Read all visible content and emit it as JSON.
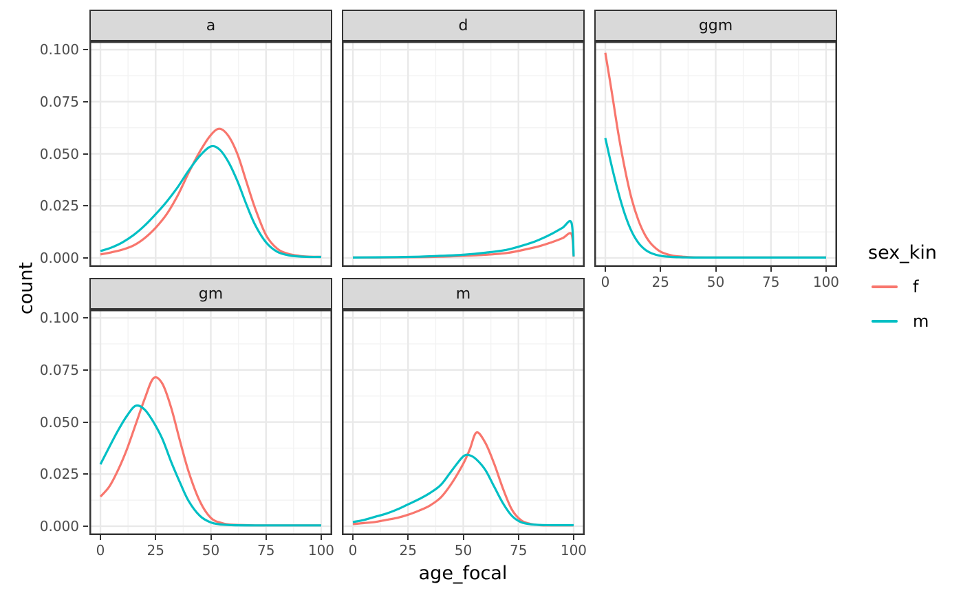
{
  "figure": {
    "background": "#FFFFFF",
    "y_axis_title": "count",
    "x_axis_title": "age_focal"
  },
  "legend": {
    "title": "sex_kin",
    "entries": [
      {
        "label": "f",
        "color": "#F8766D"
      },
      {
        "label": "m",
        "color": "#00BFC4"
      }
    ]
  },
  "style": {
    "strip_bg": "#D9D9D9",
    "strip_border": "#343434",
    "panel_border": "#343434",
    "grid_major": "#E9E9E9",
    "grid_minor": "#F3F3F3",
    "tick_color": "#333333",
    "axis_text_color": "#4D4D4D"
  },
  "chart_data": {
    "type": "line",
    "title": "",
    "xlabel": "age_focal",
    "ylabel": "count",
    "xlim": [
      -5,
      105
    ],
    "ylim": [
      -0.0043,
      0.104
    ],
    "grid": true,
    "legend_position": "right",
    "legend_title": "sex_kin",
    "series_colors": {
      "f": "#F8766D",
      "m": "#00BFC4"
    },
    "x_ticks": [
      {
        "v": 0,
        "label": "0"
      },
      {
        "v": 25,
        "label": "25"
      },
      {
        "v": 50,
        "label": "50"
      },
      {
        "v": 75,
        "label": "75"
      },
      {
        "v": 100,
        "label": "100"
      }
    ],
    "y_ticks": [
      {
        "v": 0.1,
        "label": "0.100"
      },
      {
        "v": 0.075,
        "label": "0.075"
      },
      {
        "v": 0.05,
        "label": "0.050"
      },
      {
        "v": 0.025,
        "label": "0.025"
      },
      {
        "v": 0.0,
        "label": "0.000"
      }
    ],
    "x_minor": [
      12.5,
      37.5,
      62.5,
      87.5
    ],
    "y_minor": [
      0.0125,
      0.0375,
      0.0625,
      0.0875
    ],
    "facets": [
      {
        "label": "a",
        "col": 0,
        "row": 0,
        "x_axis": false,
        "series": [
          {
            "name": "f",
            "x": [
              0,
              5,
              10,
              15,
              20,
              25,
              30,
              35,
              40,
              45,
              50,
              54,
              58,
              62,
              66,
              70,
              75,
              80,
              85,
              90,
              95,
              100
            ],
            "y": [
              0.0017,
              0.0027,
              0.004,
              0.006,
              0.0095,
              0.0145,
              0.021,
              0.03,
              0.041,
              0.051,
              0.059,
              0.062,
              0.0585,
              0.05,
              0.037,
              0.024,
              0.011,
              0.0045,
              0.002,
              0.001,
              0.0006,
              0.0005
            ]
          },
          {
            "name": "m",
            "x": [
              0,
              5,
              10,
              15,
              20,
              25,
              30,
              35,
              40,
              45,
              50,
              54,
              58,
              62,
              66,
              70,
              75,
              80,
              85,
              90,
              95,
              100
            ],
            "y": [
              0.0033,
              0.005,
              0.0075,
              0.011,
              0.0155,
              0.021,
              0.027,
              0.034,
              0.042,
              0.049,
              0.0535,
              0.052,
              0.046,
              0.037,
              0.026,
              0.016,
              0.0075,
              0.003,
              0.0013,
              0.0007,
              0.0005,
              0.0005
            ]
          }
        ]
      },
      {
        "label": "d",
        "col": 1,
        "row": 0,
        "x_axis": false,
        "series": [
          {
            "name": "f",
            "x": [
              0,
              10,
              20,
              30,
              40,
              50,
              60,
              70,
              80,
              85,
              90,
              95,
              99,
              100
            ],
            "y": [
              0.0002,
              0.0002,
              0.0003,
              0.0004,
              0.0006,
              0.001,
              0.0015,
              0.0024,
              0.0045,
              0.0058,
              0.0075,
              0.0095,
              0.0115,
              0.0006
            ]
          },
          {
            "name": "m",
            "x": [
              0,
              10,
              20,
              30,
              40,
              50,
              60,
              70,
              80,
              85,
              90,
              95,
              99,
              100
            ],
            "y": [
              0.0002,
              0.0003,
              0.0004,
              0.0006,
              0.001,
              0.0015,
              0.0025,
              0.004,
              0.007,
              0.009,
              0.0115,
              0.0145,
              0.017,
              0.0008
            ]
          }
        ]
      },
      {
        "label": "ggm",
        "col": 2,
        "row": 0,
        "x_axis": true,
        "series": [
          {
            "name": "f",
            "x": [
              0,
              3,
              6,
              9,
              12,
              15,
              18,
              21,
              25,
              30,
              35,
              40,
              50,
              60,
              70,
              80,
              90,
              100
            ],
            "y": [
              0.0985,
              0.079,
              0.059,
              0.042,
              0.028,
              0.018,
              0.011,
              0.0065,
              0.003,
              0.0012,
              0.0006,
              0.0003,
              0.0002,
              0.0002,
              0.0002,
              0.0002,
              0.0002,
              0.0002
            ]
          },
          {
            "name": "m",
            "x": [
              0,
              3,
              6,
              9,
              12,
              15,
              18,
              21,
              25,
              30,
              35,
              40,
              50,
              60,
              70,
              80,
              90,
              100
            ],
            "y": [
              0.0575,
              0.0435,
              0.031,
              0.0205,
              0.0125,
              0.0072,
              0.004,
              0.0022,
              0.001,
              0.0005,
              0.0003,
              0.0002,
              0.0002,
              0.0002,
              0.0002,
              0.0002,
              0.0002,
              0.0002
            ]
          }
        ]
      },
      {
        "label": "gm",
        "col": 0,
        "row": 1,
        "x_axis": true,
        "series": [
          {
            "name": "f",
            "x": [
              0,
              4,
              8,
              12,
              16,
              20,
              24,
              28,
              32,
              36,
              40,
              45,
              50,
              55,
              60,
              70,
              80,
              90,
              100
            ],
            "y": [
              0.0142,
              0.019,
              0.027,
              0.037,
              0.049,
              0.061,
              0.071,
              0.0685,
              0.057,
              0.041,
              0.026,
              0.012,
              0.004,
              0.0015,
              0.0007,
              0.0004,
              0.0004,
              0.0004,
              0.0004
            ]
          },
          {
            "name": "m",
            "x": [
              0,
              4,
              8,
              12,
              16,
              20,
              24,
              28,
              32,
              36,
              40,
              45,
              50,
              55,
              60,
              70,
              80,
              90,
              100
            ],
            "y": [
              0.0297,
              0.038,
              0.046,
              0.053,
              0.0578,
              0.056,
              0.05,
              0.042,
              0.031,
              0.021,
              0.012,
              0.005,
              0.0018,
              0.0008,
              0.0005,
              0.0004,
              0.0004,
              0.0004,
              0.0004
            ]
          }
        ]
      },
      {
        "label": "m",
        "col": 1,
        "row": 1,
        "x_axis": true,
        "series": [
          {
            "name": "f",
            "x": [
              0,
              5,
              10,
              15,
              20,
              25,
              30,
              35,
              40,
              45,
              50,
              53,
              56,
              60,
              64,
              68,
              72,
              76,
              80,
              85,
              90,
              100
            ],
            "y": [
              0.001,
              0.0015,
              0.002,
              0.003,
              0.004,
              0.0055,
              0.0075,
              0.01,
              0.014,
              0.021,
              0.03,
              0.037,
              0.045,
              0.04,
              0.03,
              0.018,
              0.008,
              0.003,
              0.0012,
              0.0005,
              0.0004,
              0.0004
            ]
          },
          {
            "name": "m",
            "x": [
              0,
              5,
              10,
              15,
              20,
              25,
              30,
              35,
              40,
              45,
              50,
              53,
              56,
              60,
              64,
              68,
              72,
              76,
              80,
              85,
              90,
              100
            ],
            "y": [
              0.002,
              0.003,
              0.0045,
              0.006,
              0.008,
              0.0105,
              0.013,
              0.016,
              0.02,
              0.027,
              0.0335,
              0.034,
              0.032,
              0.027,
              0.019,
              0.011,
              0.005,
              0.002,
              0.001,
              0.0006,
              0.0005,
              0.0005
            ]
          }
        ]
      }
    ]
  }
}
